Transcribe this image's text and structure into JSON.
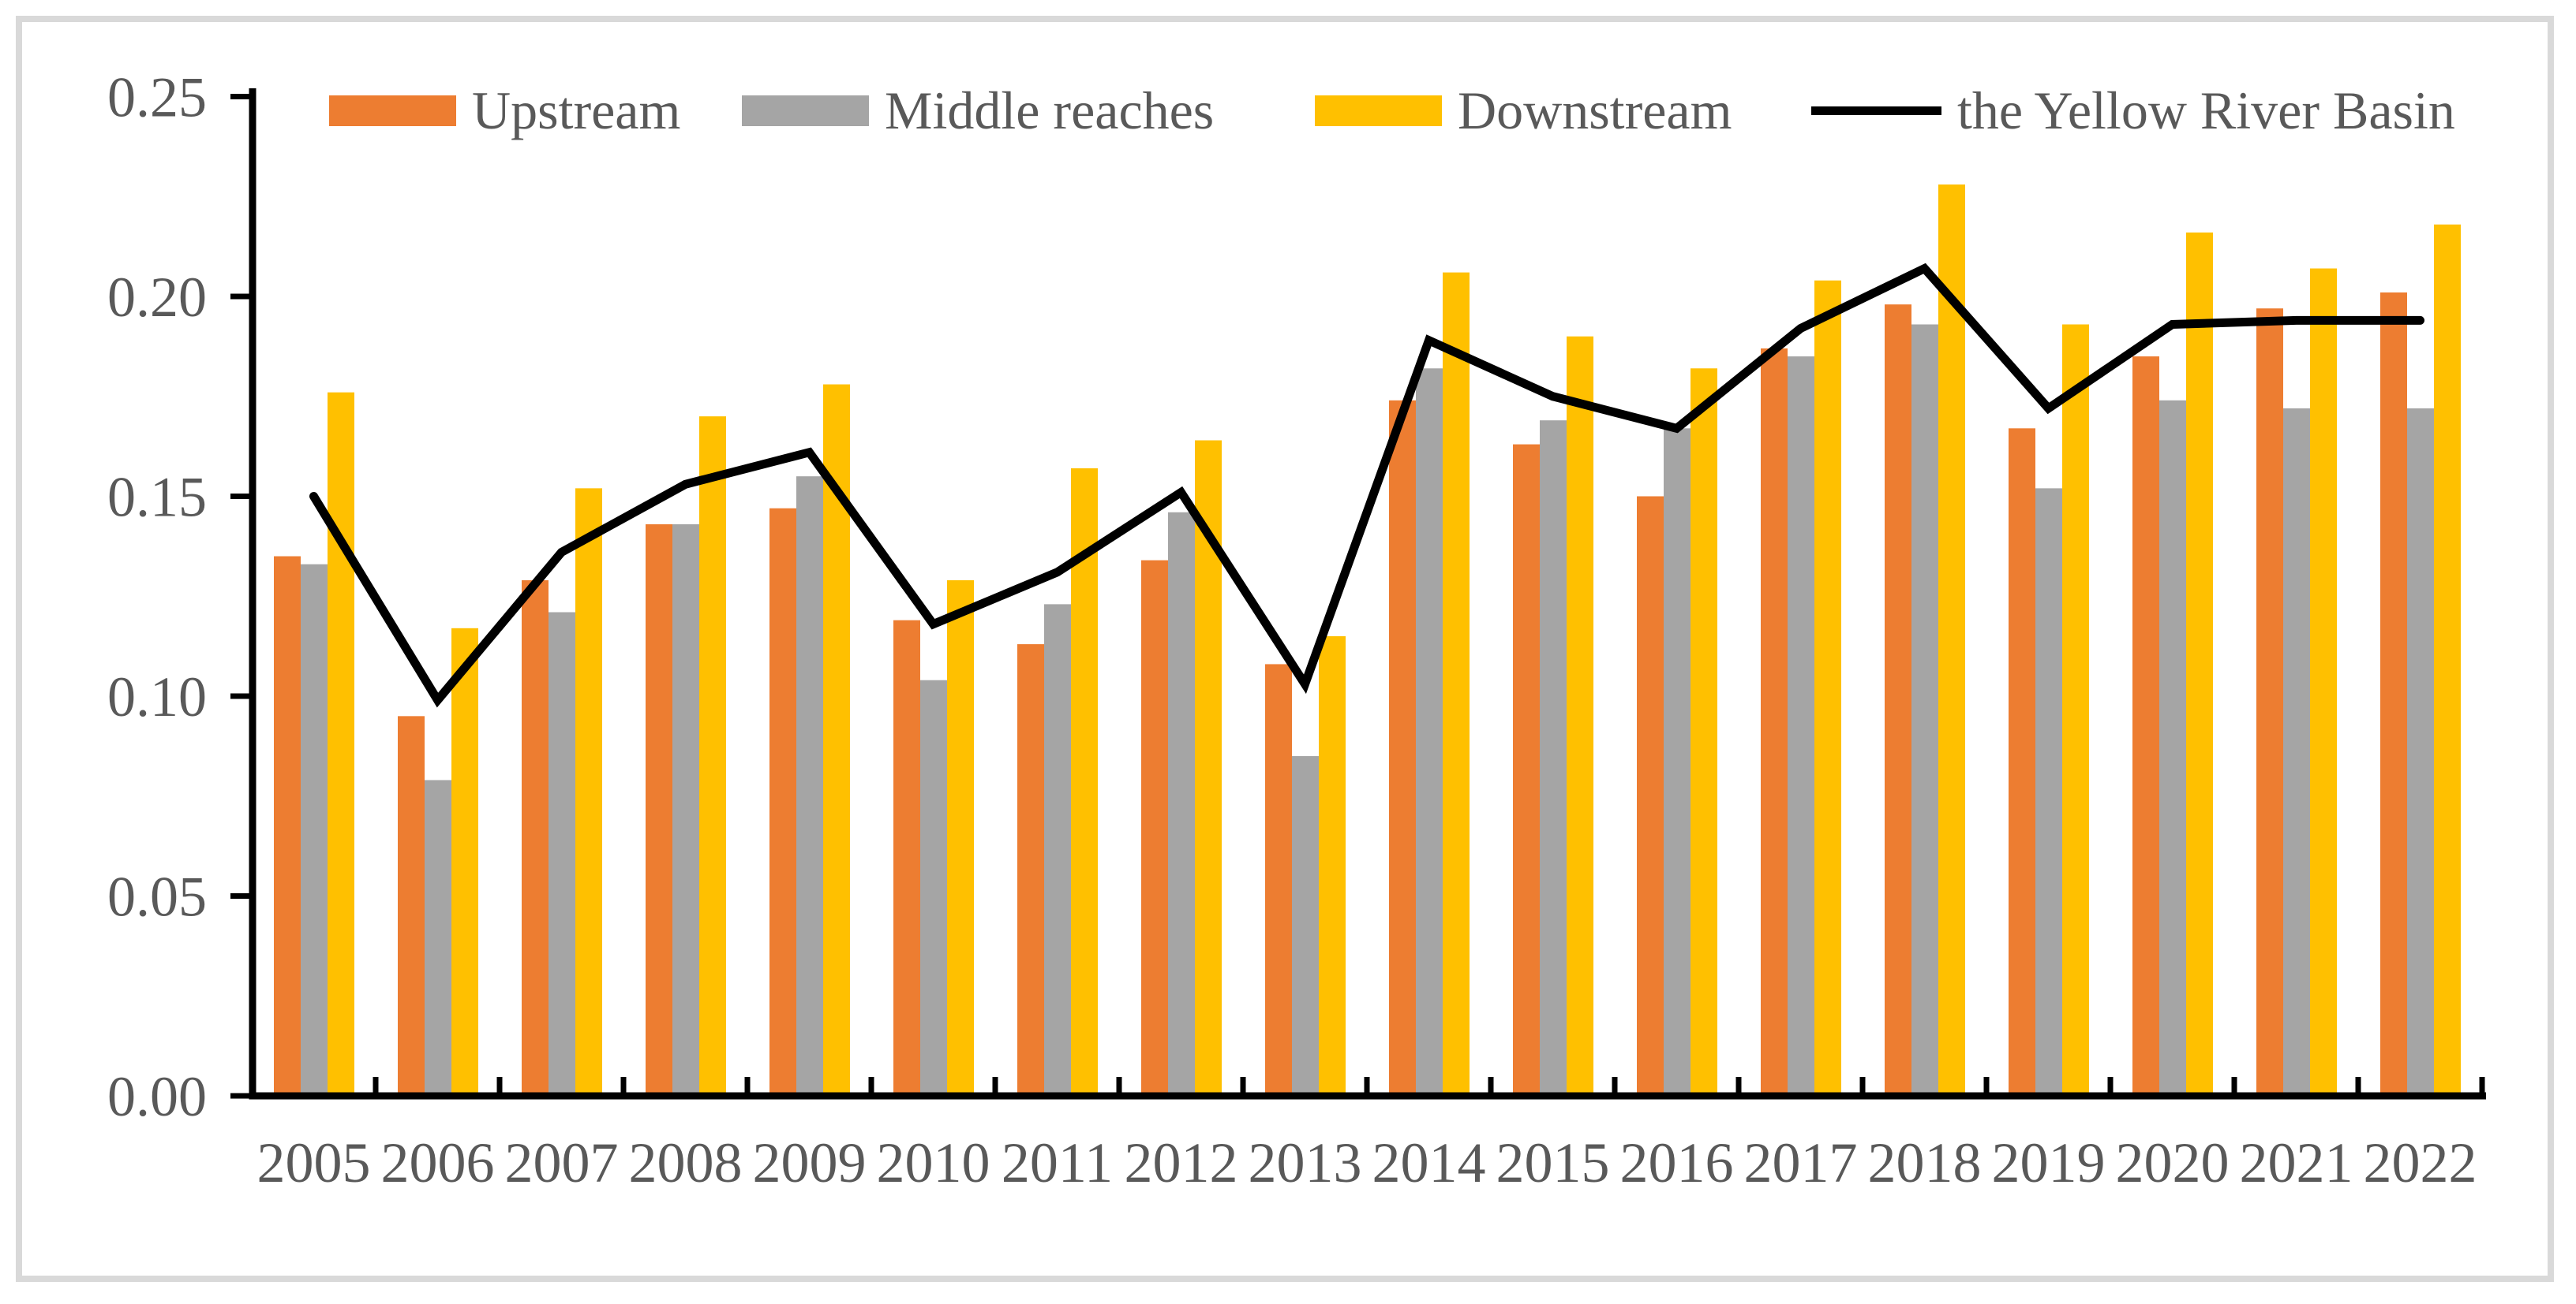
{
  "figure": {
    "background_color": "#ffffff",
    "border_color": "#D9D9D9",
    "axis_color": "#000000",
    "axis_text_color": "#595959"
  },
  "chart_data": {
    "type": "combo: grouped bar + line overlay",
    "title": "",
    "xlabel": "",
    "ylabel": "",
    "grid": false,
    "legend_position": "top",
    "ylim": [
      0,
      0.25
    ],
    "ytick_labels": [
      "0.00",
      "0.05",
      "0.10",
      "0.15",
      "0.20",
      "0.25"
    ],
    "categories": [
      "2005",
      "2006",
      "2007",
      "2008",
      "2009",
      "2010",
      "2011",
      "2012",
      "2013",
      "2014",
      "2015",
      "2016",
      "2017",
      "2018",
      "2019",
      "2020",
      "2021",
      "2022"
    ],
    "series": [
      {
        "name": "Upstream",
        "type": "bar",
        "color": "#ED7D31",
        "values": [
          0.135,
          0.095,
          0.129,
          0.143,
          0.147,
          0.119,
          0.113,
          0.134,
          0.108,
          0.174,
          0.163,
          0.15,
          0.187,
          0.198,
          0.167,
          0.185,
          0.197,
          0.201
        ]
      },
      {
        "name": "Middle reaches",
        "type": "bar",
        "color": "#A5A5A5",
        "values": [
          0.133,
          0.079,
          0.121,
          0.143,
          0.155,
          0.104,
          0.123,
          0.146,
          0.085,
          0.182,
          0.169,
          0.167,
          0.185,
          0.193,
          0.152,
          0.174,
          0.172,
          0.172
        ]
      },
      {
        "name": "Downstream",
        "type": "bar",
        "color": "#FFC000",
        "values": [
          0.176,
          0.117,
          0.152,
          0.17,
          0.178,
          0.129,
          0.157,
          0.164,
          0.115,
          0.206,
          0.19,
          0.182,
          0.204,
          0.228,
          0.193,
          0.216,
          0.207,
          0.218
        ]
      },
      {
        "name": "the Yellow River Basin",
        "type": "line",
        "color": "#000000",
        "values": [
          0.15,
          0.099,
          0.136,
          0.153,
          0.161,
          0.118,
          0.131,
          0.151,
          0.103,
          0.189,
          0.175,
          0.167,
          0.192,
          0.207,
          0.172,
          0.193,
          0.194,
          0.194
        ]
      }
    ]
  }
}
